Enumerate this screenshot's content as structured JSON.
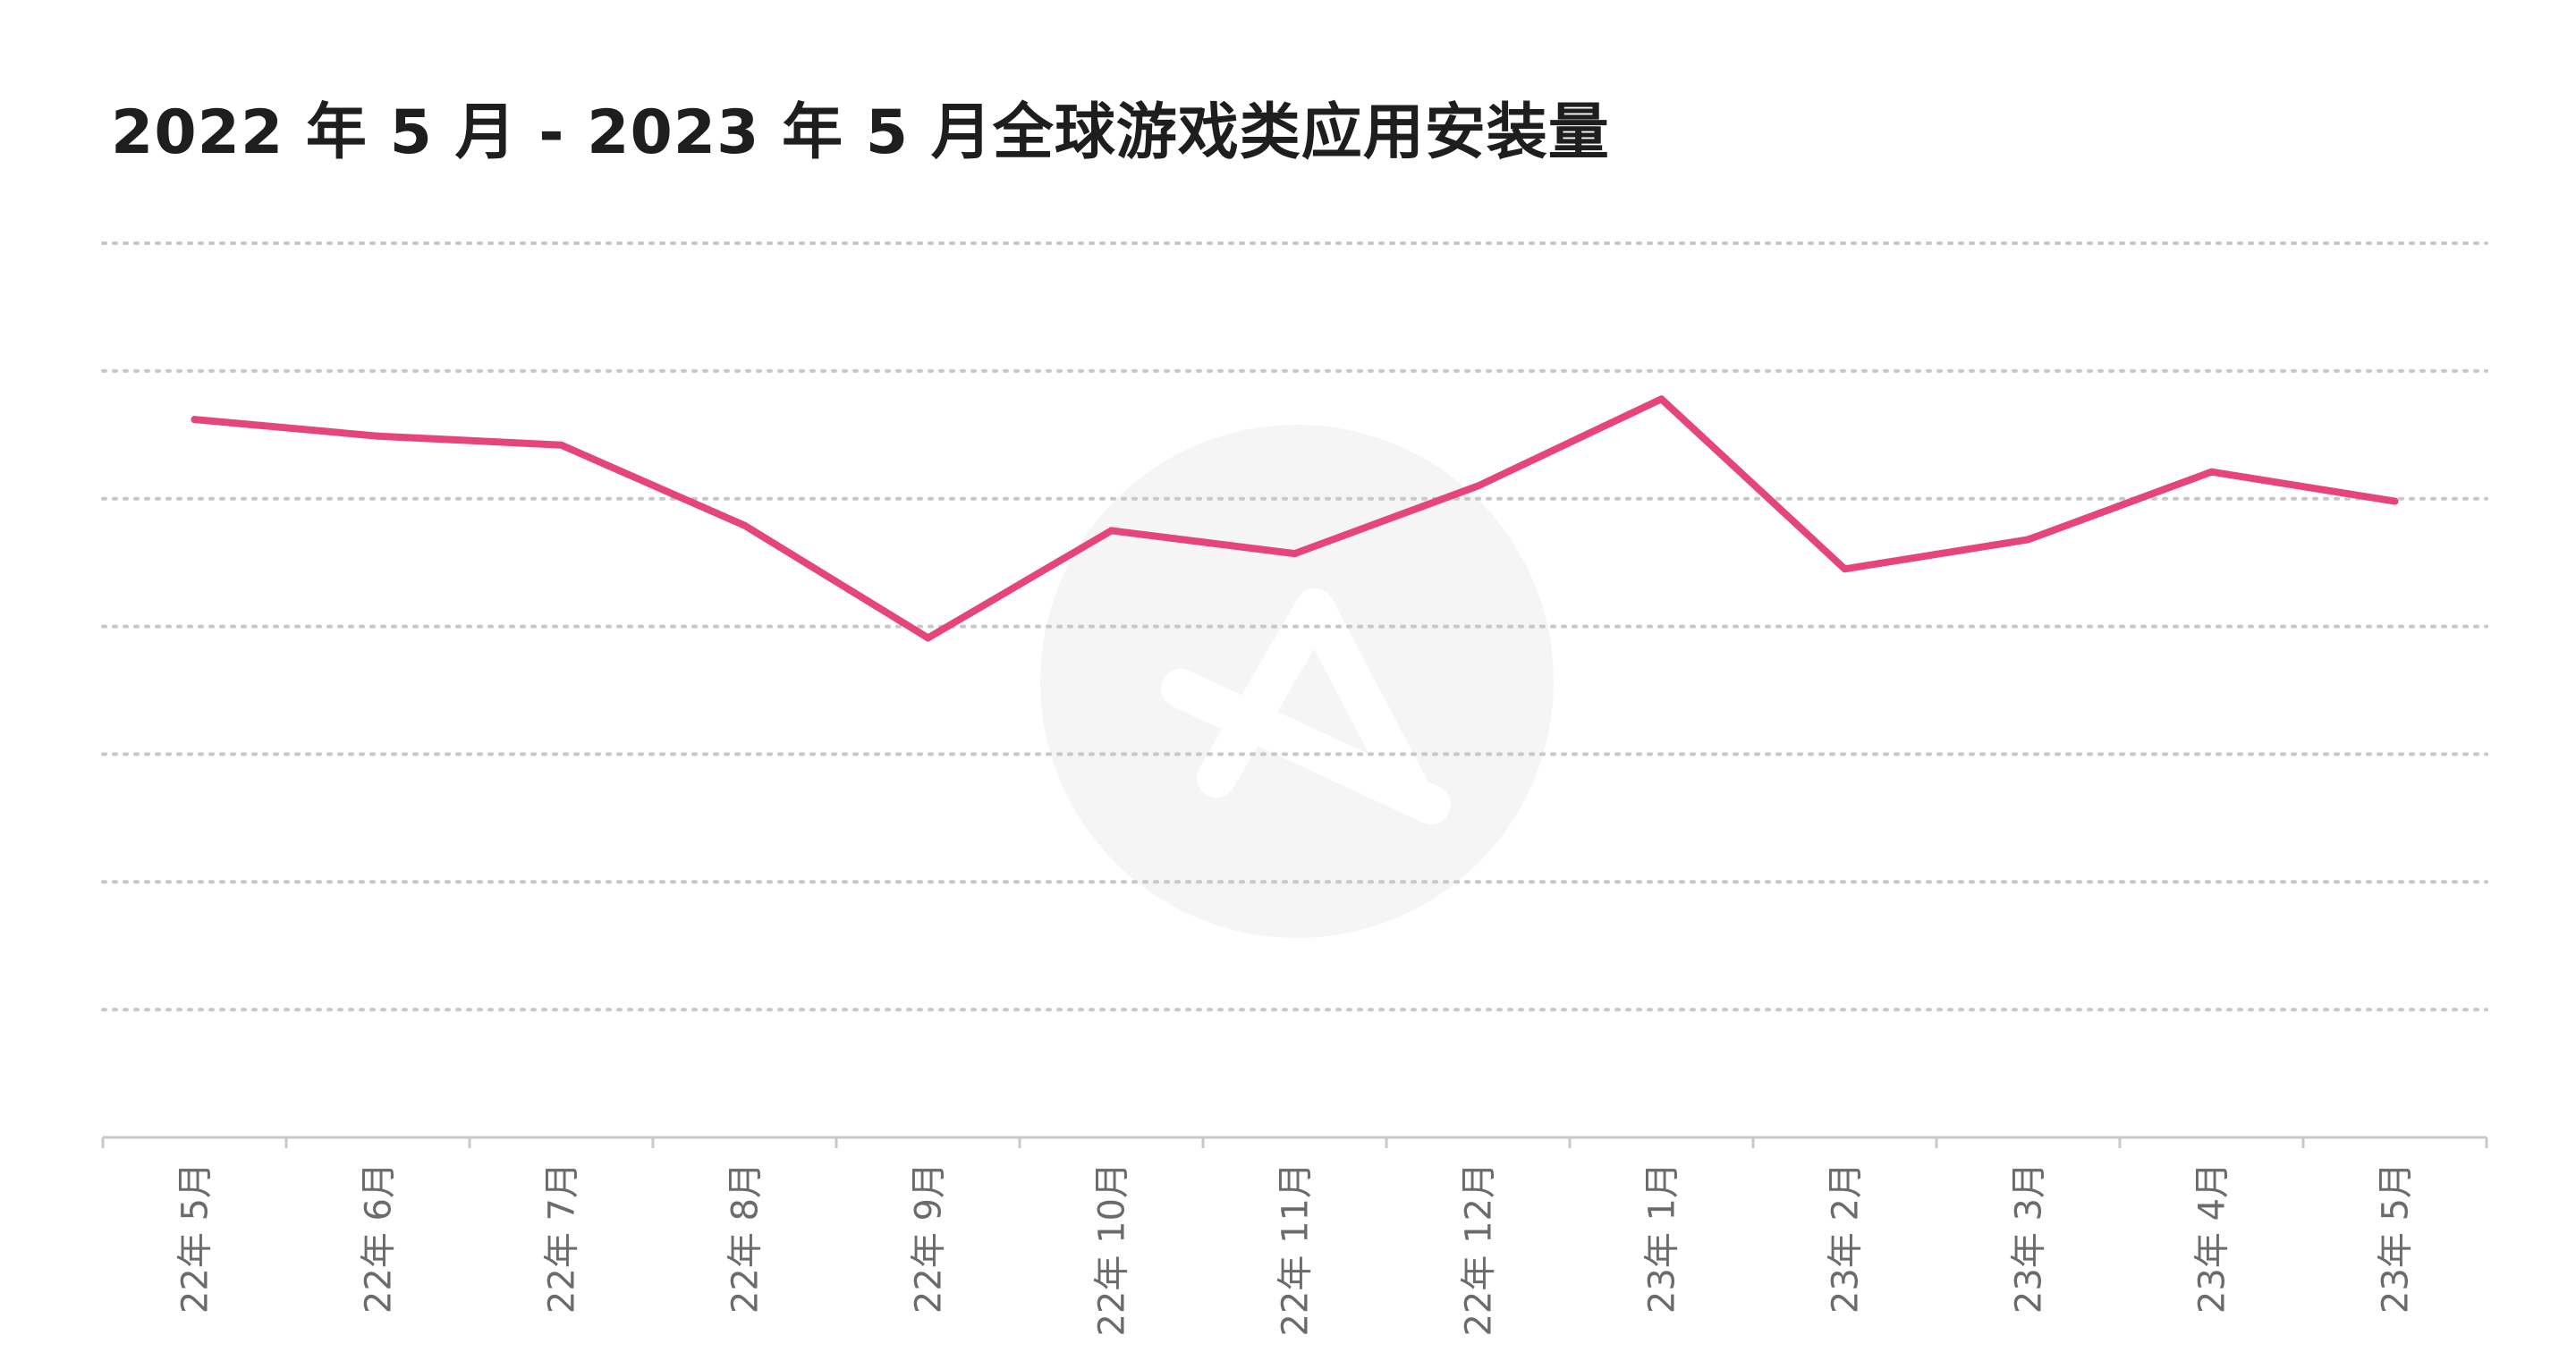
{
  "chart_data": {
    "type": "line",
    "title": "2022 年 5 月 - 2023 年 5 月全球游戏类应用安装量",
    "xlabel": "",
    "ylabel": "",
    "categories": [
      "22年 5月",
      "22年 6月",
      "22年 7月",
      "22年 8月",
      "22年 9月",
      "22年 10月",
      "22年 11月",
      "22年 12月",
      "23年 1月",
      "23年 2月",
      "23年 3月",
      "23年 4月",
      "23年 5月"
    ],
    "series": [
      {
        "values": [
          5.62,
          5.49,
          5.42,
          4.79,
          3.91,
          4.75,
          4.57,
          5.1,
          5.78,
          4.45,
          4.68,
          5.21,
          4.98
        ]
      }
    ],
    "ylim": [
      0,
      7
    ],
    "grid": true,
    "legend": "none",
    "line_color": "#e5457a"
  }
}
